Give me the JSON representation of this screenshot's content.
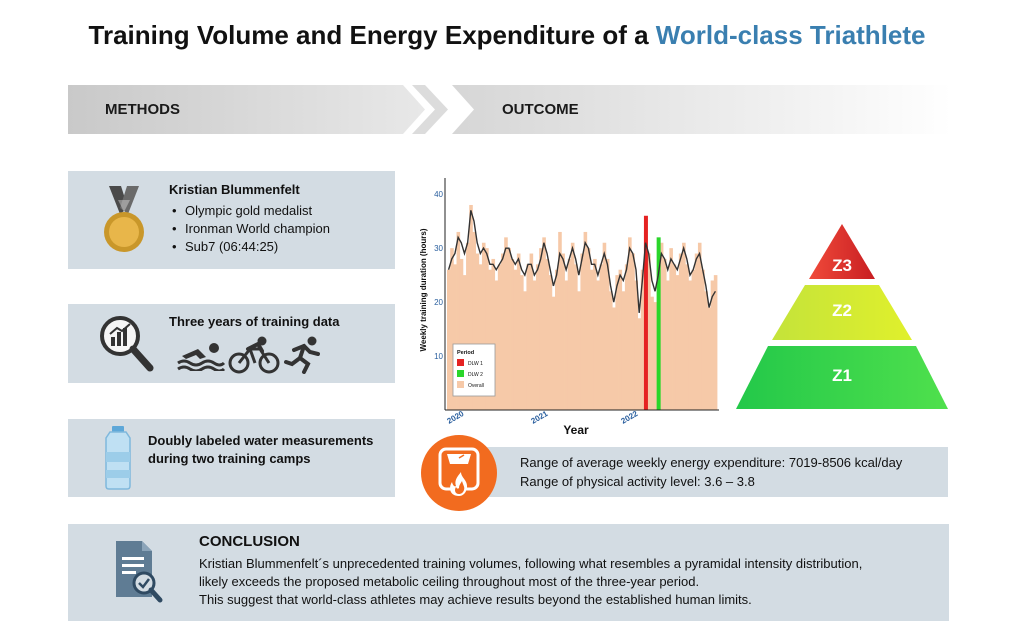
{
  "title": {
    "main": "Training Volume and Energy Expenditure of a ",
    "highlight": "World-class Triathlete"
  },
  "banners": {
    "methods": "METHODS",
    "outcome": "OUTCOME"
  },
  "methods": {
    "athlete": {
      "name": "Kristian Blummenfelt",
      "achievements": [
        "Olympic gold medalist",
        "Ironman World champion",
        "Sub7 (06:44:25)"
      ],
      "icon": "gold-medal-icon"
    },
    "training": {
      "text": "Three years of training data",
      "icons": [
        "analytics-magnifier-icon",
        "swim-icon",
        "bike-icon",
        "run-icon"
      ]
    },
    "dlw": {
      "text_line1": "Doubly labeled water measurements",
      "text_line2": "during two training camps",
      "icon": "water-bottle-icon"
    }
  },
  "chart_data": {
    "type": "area",
    "ylabel": "Weekly training duration (hours)",
    "xlabel": "Year",
    "x_ticks": [
      "2020",
      "2021",
      "2022"
    ],
    "y_ticks": [
      10,
      20,
      30,
      40
    ],
    "ylim": [
      0,
      43
    ],
    "legend": {
      "title": "Period",
      "items": [
        "DLW 1",
        "DLW 2",
        "Overall"
      ],
      "placement": "bottom-left"
    },
    "colors": {
      "overall": "#f6c9a8",
      "dlw1": "#e52222",
      "dlw2": "#2ad62a",
      "trend": "#333333"
    },
    "series": [
      {
        "name": "Overall",
        "values": [
          26,
          30,
          27,
          33,
          28,
          25,
          31,
          38,
          33,
          29,
          27,
          31,
          30,
          26,
          28,
          24,
          27,
          29,
          32,
          30,
          28,
          26,
          29,
          25,
          22,
          27,
          29,
          24,
          27,
          30,
          32,
          28,
          25,
          21,
          26,
          33,
          29,
          24,
          28,
          31,
          27,
          22,
          29,
          33,
          30,
          26,
          28,
          24,
          27,
          31,
          28,
          22,
          19,
          25,
          26,
          22,
          27,
          32,
          29,
          24,
          17,
          26,
          33,
          29,
          21,
          20,
          26,
          31,
          28,
          24,
          30,
          27,
          25,
          29,
          31,
          27,
          24,
          26,
          29,
          31,
          26,
          22,
          19,
          24,
          25
        ]
      }
    ],
    "trend": [
      26,
      28,
      29,
      32,
      31,
      29,
      31,
      37,
      35,
      31,
      29,
      30,
      29,
      27,
      27,
      26,
      27,
      28,
      30,
      30,
      28,
      27,
      28,
      26,
      25,
      27,
      27,
      25,
      26,
      28,
      31,
      29,
      26,
      23,
      25,
      29,
      28,
      26,
      28,
      30,
      28,
      25,
      28,
      31,
      30,
      27,
      27,
      25,
      27,
      29,
      27,
      23,
      20,
      23,
      25,
      24,
      26,
      30,
      29,
      26,
      18,
      24,
      31,
      29,
      24,
      22,
      25,
      29,
      28,
      26,
      28,
      27,
      26,
      28,
      30,
      28,
      25,
      26,
      28,
      29,
      26,
      23,
      19,
      21,
      22
    ],
    "dlw1_index": 62,
    "dlw2_index": 66
  },
  "energy": {
    "line1": "Range of average weekly energy expenditure: 7019-8506 kcal/day",
    "line2": "Range of physical activity level: 3.6 – 3.8",
    "icon": "scale-flame-icon"
  },
  "pyramid": {
    "levels": [
      "Z3",
      "Z2",
      "Z1"
    ],
    "colors": {
      "z3": "#e0262a",
      "z2": "#c6e82a",
      "z1": "#3cd64a"
    }
  },
  "conclusion": {
    "heading": "CONCLUSION",
    "line1": "Kristian Blummenfelt´s unprecedented training volumes, following what resembles a pyramidal intensity distribution,",
    "line2": "likely exceeds the proposed metabolic ceiling throughout most of the three-year period.",
    "line3": "This suggest that world-class athletes may achieve results beyond the established human limits.",
    "icon": "document-search-icon"
  }
}
